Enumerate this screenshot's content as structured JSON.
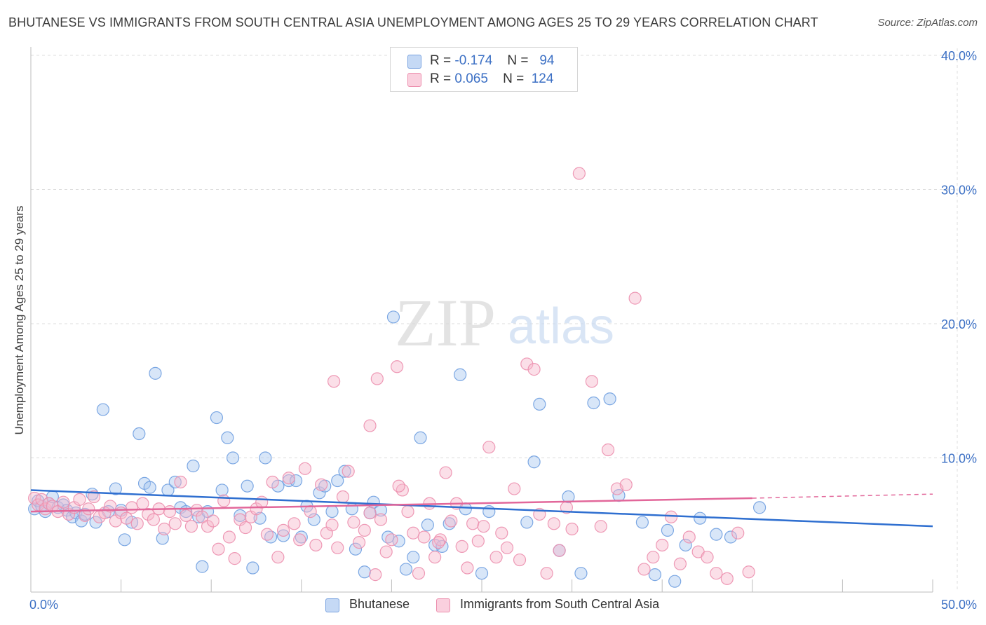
{
  "title": "BHUTANESE VS IMMIGRANTS FROM SOUTH CENTRAL ASIA UNEMPLOYMENT AMONG AGES 25 TO 29 YEARS CORRELATION CHART",
  "source": "Source: ZipAtlas.com",
  "watermark": {
    "zip": "ZIP",
    "atlas": "atlas"
  },
  "legend": {
    "rows": [
      {
        "r_label": "R =",
        "r_value": "-0.174",
        "n_label": "N =",
        "n_value": "94",
        "color": "#a9c7f0",
        "border": "#7aa3e0"
      },
      {
        "r_label": "R =",
        "r_value": "0.065",
        "n_label": "N =",
        "n_value": "124",
        "color": "#f7b9cd",
        "border": "#ec8fae"
      }
    ]
  },
  "chart_data": {
    "type": "scatter",
    "xlabel": "",
    "ylabel": "Unemployment Among Ages 25 to 29 years",
    "xlim": [
      0,
      50
    ],
    "ylim": [
      0,
      40
    ],
    "x_tick_labels": [
      "0.0%",
      "50.0%"
    ],
    "y_ticks": [
      10,
      20,
      30,
      40
    ],
    "y_tick_labels": [
      "10.0%",
      "20.0%",
      "30.0%",
      "40.0%"
    ],
    "grid": true,
    "legend_position": "bottom",
    "series": [
      {
        "name": "Bhutanese",
        "color": "#6f9fe0",
        "fill": "#a9c7f0",
        "trend": {
          "x": [
            0,
            50
          ],
          "y": [
            7.6,
            4.9
          ],
          "color": "#2f6fd0"
        },
        "points": [
          [
            0.2,
            6.2
          ],
          [
            0.4,
            6.8
          ],
          [
            0.6,
            6.4
          ],
          [
            0.8,
            6.0
          ],
          [
            1.0,
            6.6
          ],
          [
            1.2,
            7.1
          ],
          [
            1.5,
            6.3
          ],
          [
            1.8,
            6.5
          ],
          [
            2.0,
            6.1
          ],
          [
            2.3,
            5.6
          ],
          [
            2.5,
            5.9
          ],
          [
            2.8,
            5.3
          ],
          [
            3.0,
            5.8
          ],
          [
            3.4,
            7.3
          ],
          [
            3.6,
            5.2
          ],
          [
            4.0,
            13.6
          ],
          [
            4.3,
            6.0
          ],
          [
            4.7,
            7.7
          ],
          [
            5.0,
            6.1
          ],
          [
            5.2,
            3.9
          ],
          [
            5.6,
            5.2
          ],
          [
            6.0,
            11.8
          ],
          [
            6.3,
            8.1
          ],
          [
            6.6,
            7.8
          ],
          [
            6.9,
            16.3
          ],
          [
            7.3,
            4.0
          ],
          [
            7.6,
            7.6
          ],
          [
            8.0,
            8.2
          ],
          [
            8.3,
            6.3
          ],
          [
            8.6,
            6.0
          ],
          [
            9.0,
            9.4
          ],
          [
            9.3,
            5.6
          ],
          [
            9.5,
            1.9
          ],
          [
            9.8,
            6.0
          ],
          [
            10.3,
            13.0
          ],
          [
            10.6,
            7.6
          ],
          [
            10.9,
            11.5
          ],
          [
            11.2,
            10.0
          ],
          [
            11.6,
            5.7
          ],
          [
            12.0,
            7.9
          ],
          [
            12.3,
            1.8
          ],
          [
            12.7,
            5.5
          ],
          [
            13.0,
            10.0
          ],
          [
            13.3,
            4.1
          ],
          [
            13.7,
            7.9
          ],
          [
            14.0,
            4.2
          ],
          [
            14.3,
            8.3
          ],
          [
            14.7,
            8.3
          ],
          [
            15.0,
            4.1
          ],
          [
            15.3,
            6.4
          ],
          [
            15.7,
            5.4
          ],
          [
            16.0,
            7.4
          ],
          [
            16.3,
            7.9
          ],
          [
            16.7,
            6.0
          ],
          [
            17.0,
            8.3
          ],
          [
            17.4,
            9.0
          ],
          [
            17.8,
            6.2
          ],
          [
            18.0,
            3.2
          ],
          [
            18.5,
            1.5
          ],
          [
            18.8,
            5.9
          ],
          [
            19.0,
            6.7
          ],
          [
            19.4,
            6.1
          ],
          [
            19.8,
            4.1
          ],
          [
            20.1,
            20.5
          ],
          [
            20.4,
            3.8
          ],
          [
            20.8,
            1.7
          ],
          [
            21.2,
            2.6
          ],
          [
            21.6,
            11.5
          ],
          [
            22.0,
            5.0
          ],
          [
            22.4,
            3.5
          ],
          [
            22.8,
            3.4
          ],
          [
            23.2,
            5.1
          ],
          [
            23.8,
            16.2
          ],
          [
            24.1,
            6.2
          ],
          [
            25.0,
            1.4
          ],
          [
            25.4,
            6.0
          ],
          [
            27.5,
            5.2
          ],
          [
            27.9,
            9.7
          ],
          [
            28.2,
            14.0
          ],
          [
            29.3,
            3.1
          ],
          [
            29.8,
            7.1
          ],
          [
            30.5,
            1.4
          ],
          [
            31.2,
            14.1
          ],
          [
            32.1,
            14.4
          ],
          [
            32.6,
            7.2
          ],
          [
            33.9,
            5.2
          ],
          [
            34.6,
            1.3
          ],
          [
            35.3,
            4.6
          ],
          [
            35.7,
            0.8
          ],
          [
            36.3,
            3.5
          ],
          [
            37.1,
            5.5
          ],
          [
            38.0,
            4.3
          ],
          [
            38.8,
            4.1
          ],
          [
            40.4,
            6.3
          ]
        ]
      },
      {
        "name": "Immigrants from South Central Asia",
        "color": "#ec8fae",
        "fill": "#f7b9cd",
        "trend": {
          "x": [
            0,
            40
          ],
          "y": [
            6.0,
            7.0
          ],
          "color": "#e2679a",
          "dash_x": [
            40,
            50
          ],
          "dash_y": [
            7.0,
            7.3
          ]
        },
        "points": [
          [
            0.2,
            7.0
          ],
          [
            0.4,
            6.5
          ],
          [
            0.6,
            6.9
          ],
          [
            0.8,
            6.2
          ],
          [
            1.0,
            6.6
          ],
          [
            1.2,
            6.4
          ],
          [
            1.5,
            6.0
          ],
          [
            1.8,
            6.7
          ],
          [
            2.1,
            5.8
          ],
          [
            2.4,
            6.3
          ],
          [
            2.7,
            6.9
          ],
          [
            3.0,
            5.7
          ],
          [
            3.2,
            6.2
          ],
          [
            3.5,
            7.1
          ],
          [
            3.8,
            5.6
          ],
          [
            4.1,
            5.9
          ],
          [
            4.4,
            6.4
          ],
          [
            4.7,
            5.3
          ],
          [
            5.0,
            5.9
          ],
          [
            5.3,
            5.5
          ],
          [
            5.6,
            6.3
          ],
          [
            5.9,
            5.1
          ],
          [
            6.2,
            6.6
          ],
          [
            6.5,
            5.8
          ],
          [
            6.8,
            5.4
          ],
          [
            7.1,
            6.2
          ],
          [
            7.4,
            4.7
          ],
          [
            7.7,
            6.0
          ],
          [
            8.0,
            5.1
          ],
          [
            8.3,
            8.2
          ],
          [
            8.6,
            5.7
          ],
          [
            8.9,
            4.9
          ],
          [
            9.2,
            6.1
          ],
          [
            9.5,
            5.6
          ],
          [
            9.8,
            4.9
          ],
          [
            10.1,
            5.3
          ],
          [
            10.4,
            3.2
          ],
          [
            10.7,
            6.8
          ],
          [
            11.0,
            4.1
          ],
          [
            11.3,
            2.5
          ],
          [
            11.6,
            5.4
          ],
          [
            11.9,
            4.8
          ],
          [
            12.2,
            5.6
          ],
          [
            12.5,
            6.2
          ],
          [
            12.8,
            6.7
          ],
          [
            13.1,
            4.3
          ],
          [
            13.4,
            8.2
          ],
          [
            13.7,
            2.6
          ],
          [
            14.0,
            4.6
          ],
          [
            14.3,
            8.5
          ],
          [
            14.6,
            5.1
          ],
          [
            14.9,
            3.9
          ],
          [
            15.2,
            9.2
          ],
          [
            15.5,
            6.0
          ],
          [
            15.8,
            3.5
          ],
          [
            16.1,
            8.0
          ],
          [
            16.4,
            4.4
          ],
          [
            16.7,
            5.0
          ],
          [
            17.0,
            3.3
          ],
          [
            17.3,
            7.1
          ],
          [
            17.6,
            9.0
          ],
          [
            17.9,
            5.2
          ],
          [
            18.2,
            3.7
          ],
          [
            18.5,
            4.6
          ],
          [
            18.8,
            5.9
          ],
          [
            19.1,
            1.3
          ],
          [
            19.4,
            5.4
          ],
          [
            19.7,
            3.0
          ],
          [
            20.0,
            3.9
          ],
          [
            20.3,
            16.8
          ],
          [
            20.6,
            7.6
          ],
          [
            20.9,
            6.0
          ],
          [
            21.2,
            4.4
          ],
          [
            21.5,
            1.4
          ],
          [
            21.8,
            4.1
          ],
          [
            22.1,
            6.6
          ],
          [
            22.4,
            2.6
          ],
          [
            22.7,
            3.9
          ],
          [
            23.0,
            8.9
          ],
          [
            23.3,
            5.3
          ],
          [
            23.6,
            6.6
          ],
          [
            23.9,
            3.4
          ],
          [
            24.2,
            1.8
          ],
          [
            24.5,
            5.1
          ],
          [
            24.8,
            3.8
          ],
          [
            25.1,
            4.9
          ],
          [
            25.4,
            10.8
          ],
          [
            25.8,
            2.6
          ],
          [
            26.1,
            4.4
          ],
          [
            26.4,
            3.3
          ],
          [
            26.8,
            7.7
          ],
          [
            27.1,
            2.4
          ],
          [
            27.5,
            17.0
          ],
          [
            27.9,
            16.6
          ],
          [
            28.2,
            5.8
          ],
          [
            28.6,
            1.4
          ],
          [
            29.0,
            5.1
          ],
          [
            29.3,
            3.1
          ],
          [
            29.7,
            6.3
          ],
          [
            30.0,
            4.7
          ],
          [
            30.4,
            31.2
          ],
          [
            31.1,
            15.7
          ],
          [
            31.6,
            4.9
          ],
          [
            32.0,
            10.6
          ],
          [
            32.5,
            7.7
          ],
          [
            33.0,
            8.0
          ],
          [
            33.5,
            21.9
          ],
          [
            34.0,
            1.7
          ],
          [
            34.5,
            2.6
          ],
          [
            35.0,
            3.5
          ],
          [
            35.5,
            5.6
          ],
          [
            36.0,
            2.1
          ],
          [
            36.5,
            4.1
          ],
          [
            37.0,
            3.0
          ],
          [
            37.5,
            2.6
          ],
          [
            38.0,
            1.4
          ],
          [
            38.6,
            1.0
          ],
          [
            39.2,
            4.4
          ],
          [
            39.8,
            1.5
          ],
          [
            16.8,
            15.7
          ],
          [
            19.2,
            15.9
          ],
          [
            18.8,
            12.4
          ],
          [
            20.4,
            7.9
          ],
          [
            22.6,
            3.7
          ]
        ]
      }
    ]
  }
}
